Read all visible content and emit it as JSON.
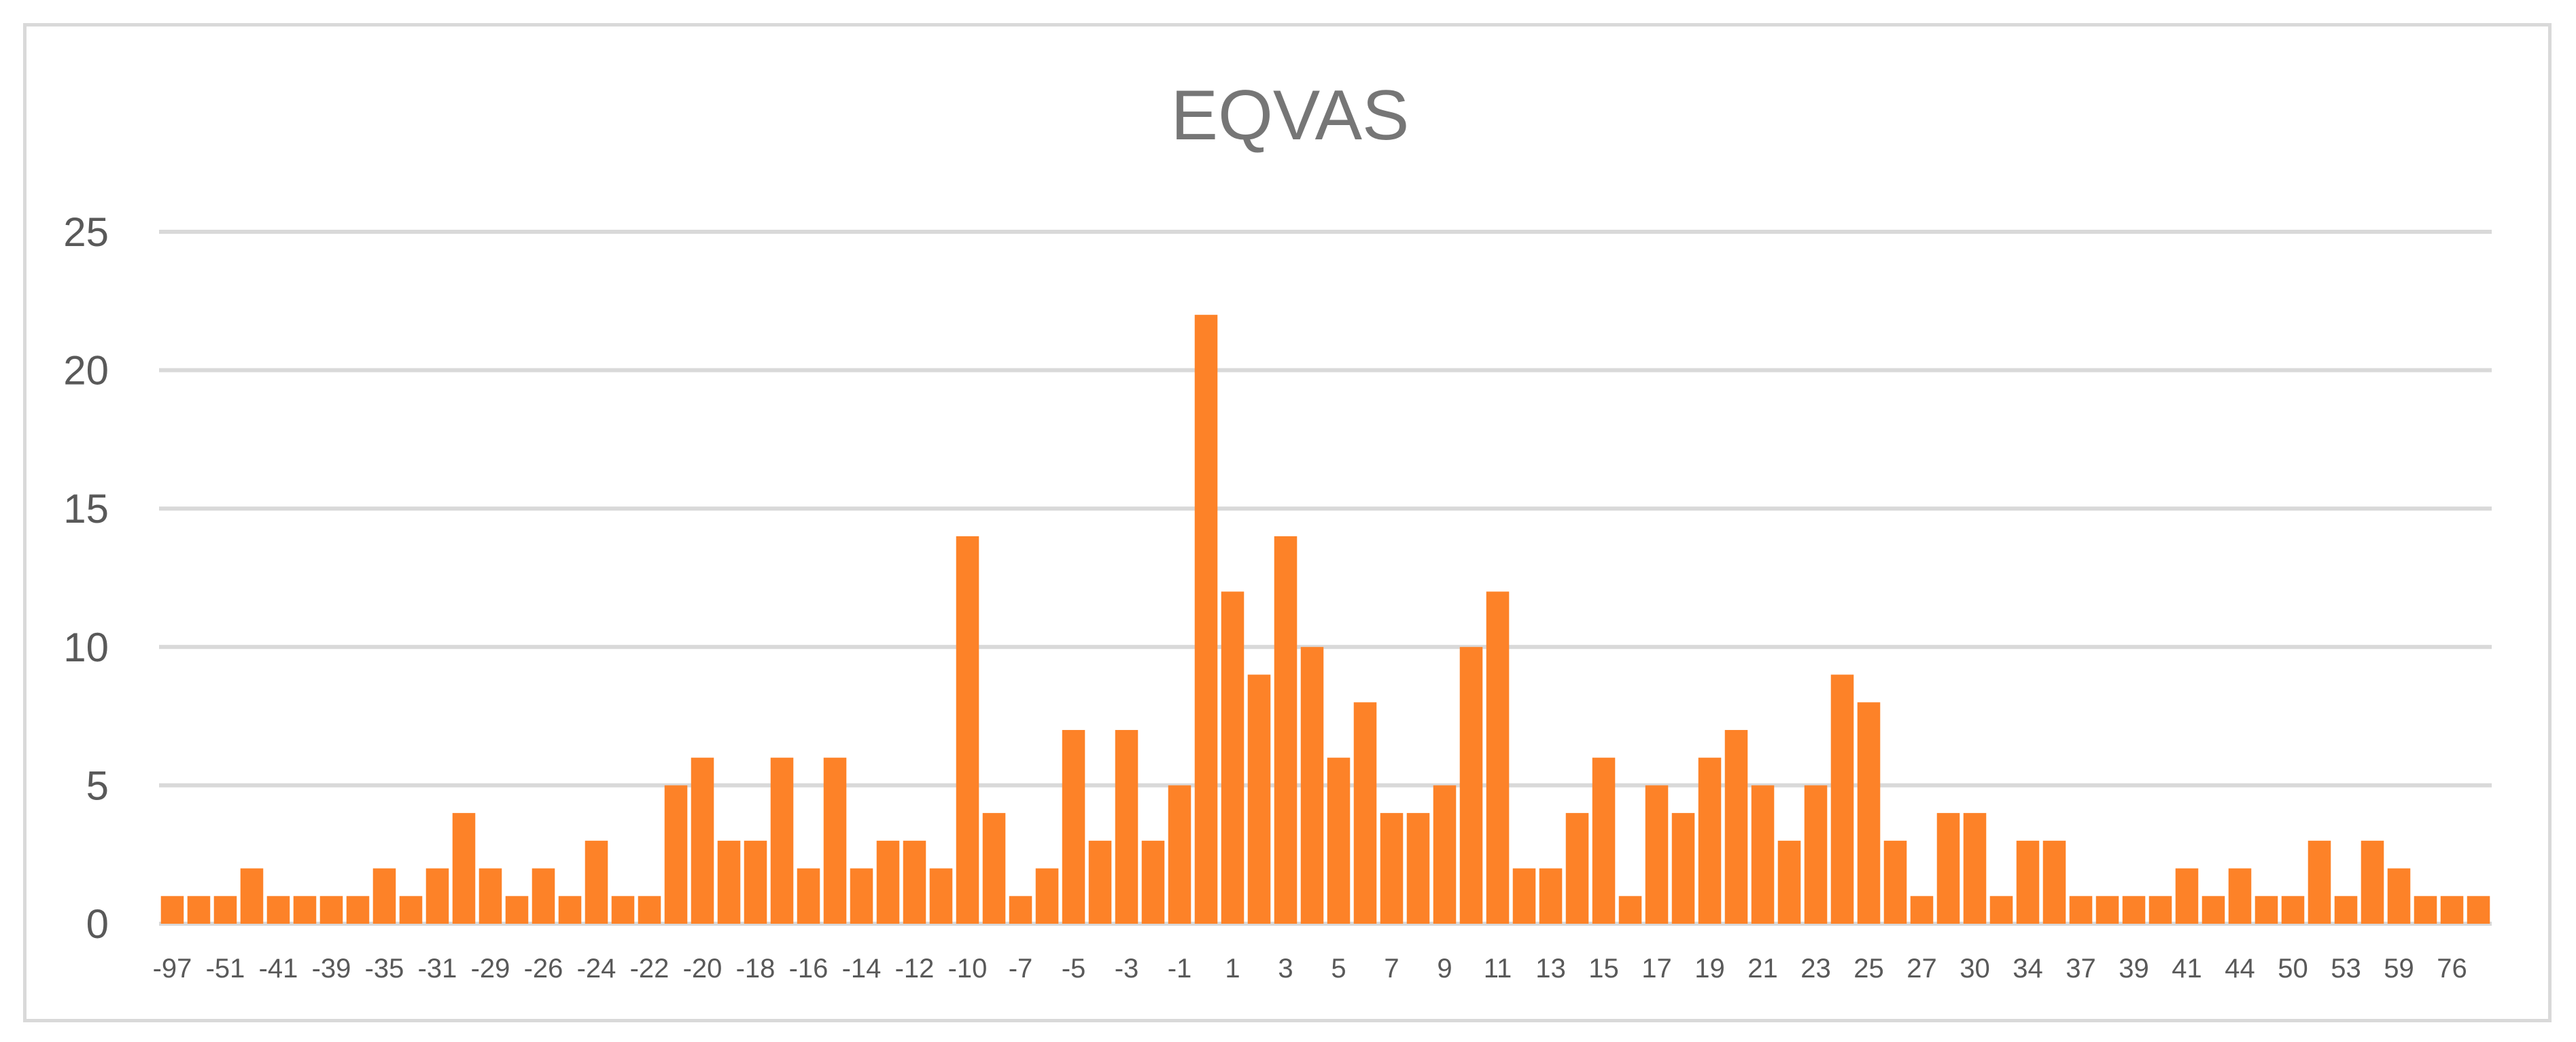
{
  "chart_data": {
    "type": "bar",
    "title": "EQVAS",
    "xlabel": "",
    "ylabel": "",
    "ylim": [
      0,
      25
    ],
    "yticks": [
      "0",
      "5",
      "10",
      "15",
      "20",
      "25"
    ],
    "grid": true,
    "legend": "none",
    "bar_color": "#fd8228",
    "grid_color": "#d9d9d9",
    "values": [
      1,
      1,
      1,
      2,
      1,
      1,
      1,
      1,
      2,
      1,
      2,
      4,
      2,
      1,
      2,
      1,
      3,
      1,
      1,
      5,
      6,
      3,
      3,
      6,
      2,
      6,
      2,
      3,
      3,
      2,
      14,
      4,
      1,
      2,
      7,
      3,
      7,
      3,
      5,
      22,
      12,
      9,
      14,
      10,
      6,
      8,
      4,
      4,
      5,
      10,
      12,
      2,
      2,
      4,
      6,
      1,
      5,
      4,
      6,
      7,
      5,
      3,
      5,
      9,
      8,
      3,
      1,
      4,
      4,
      1,
      3,
      3,
      1,
      1,
      1,
      1,
      2,
      1,
      2,
      1,
      1,
      3,
      1,
      3,
      2,
      1,
      1,
      1
    ],
    "tick_labels": [
      {
        "i": 0,
        "label": "-97"
      },
      {
        "i": 2,
        "label": "-51"
      },
      {
        "i": 4,
        "label": "-41"
      },
      {
        "i": 6,
        "label": "-39"
      },
      {
        "i": 8,
        "label": "-35"
      },
      {
        "i": 10,
        "label": "-31"
      },
      {
        "i": 12,
        "label": "-29"
      },
      {
        "i": 14,
        "label": "-26"
      },
      {
        "i": 16,
        "label": "-24"
      },
      {
        "i": 18,
        "label": "-22"
      },
      {
        "i": 20,
        "label": "-20"
      },
      {
        "i": 22,
        "label": "-18"
      },
      {
        "i": 24,
        "label": "-16"
      },
      {
        "i": 26,
        "label": "-14"
      },
      {
        "i": 28,
        "label": "-12"
      },
      {
        "i": 30,
        "label": "-10"
      },
      {
        "i": 32,
        "label": "-7"
      },
      {
        "i": 34,
        "label": "-5"
      },
      {
        "i": 36,
        "label": "-3"
      },
      {
        "i": 38,
        "label": "-1"
      },
      {
        "i": 40,
        "label": "1"
      },
      {
        "i": 42,
        "label": "3"
      },
      {
        "i": 44,
        "label": "5"
      },
      {
        "i": 46,
        "label": "7"
      },
      {
        "i": 48,
        "label": "9"
      },
      {
        "i": 50,
        "label": "11"
      },
      {
        "i": 52,
        "label": "13"
      },
      {
        "i": 54,
        "label": "15"
      },
      {
        "i": 56,
        "label": "17"
      },
      {
        "i": 58,
        "label": "19"
      },
      {
        "i": 60,
        "label": "21"
      },
      {
        "i": 62,
        "label": "23"
      },
      {
        "i": 64,
        "label": "25"
      },
      {
        "i": 66,
        "label": "27"
      },
      {
        "i": 68,
        "label": "30"
      },
      {
        "i": 70,
        "label": "34"
      },
      {
        "i": 72,
        "label": "37"
      },
      {
        "i": 74,
        "label": "39"
      },
      {
        "i": 76,
        "label": "41"
      },
      {
        "i": 78,
        "label": "44"
      },
      {
        "i": 80,
        "label": "50"
      },
      {
        "i": 82,
        "label": "53"
      },
      {
        "i": 84,
        "label": "59"
      },
      {
        "i": 86,
        "label": "76"
      }
    ]
  }
}
